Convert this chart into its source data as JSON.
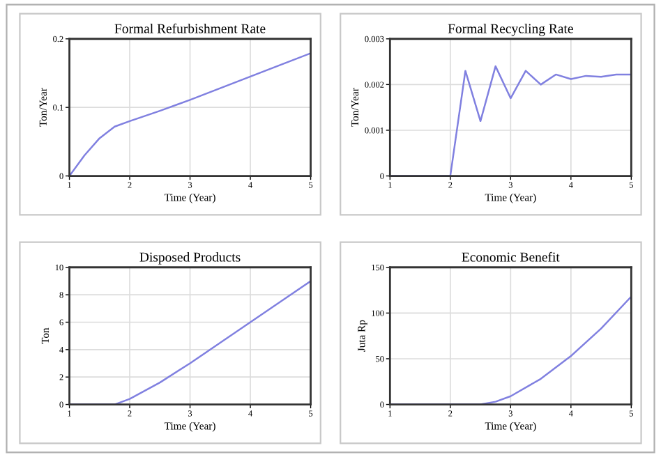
{
  "chart_data": [
    {
      "type": "line",
      "title": "Formal Refurbishment Rate",
      "xlabel": "Time (Year)",
      "ylabel": "Ton/Year",
      "xlim": [
        1,
        5
      ],
      "xticks": [
        1,
        2,
        3,
        4,
        5
      ],
      "ylim": [
        0,
        0.2
      ],
      "yticks": [
        0,
        0.1,
        0.2
      ],
      "grid": true,
      "series": [
        {
          "color": "#8080e0",
          "x": [
            1,
            1.25,
            1.5,
            1.75,
            2,
            2.5,
            3,
            3.5,
            4,
            4.5,
            5
          ],
          "values": [
            0,
            0.03,
            0.055,
            0.072,
            0.08,
            0.095,
            0.111,
            0.128,
            0.145,
            0.162,
            0.179
          ]
        }
      ]
    },
    {
      "type": "line",
      "title": "Formal Recycling Rate",
      "xlabel": "Time (Year)",
      "ylabel": "Ton/Year",
      "xlim": [
        1,
        5
      ],
      "xticks": [
        1,
        2,
        3,
        4,
        5
      ],
      "ylim": [
        0,
        0.003
      ],
      "yticks": [
        0,
        0.001,
        0.002,
        0.003
      ],
      "grid": true,
      "series": [
        {
          "color": "#8080e0",
          "x": [
            1,
            2,
            2.25,
            2.5,
            2.75,
            3,
            3.25,
            3.5,
            3.75,
            4,
            4.25,
            4.5,
            4.75,
            5
          ],
          "values": [
            0,
            0,
            0.0023,
            0.0012,
            0.0024,
            0.0017,
            0.0023,
            0.002,
            0.00222,
            0.00212,
            0.00219,
            0.00217,
            0.00222,
            0.00222
          ]
        }
      ]
    },
    {
      "type": "line",
      "title": "Disposed Products",
      "xlabel": "Time (Year)",
      "ylabel": "Ton",
      "xlim": [
        1,
        5
      ],
      "xticks": [
        1,
        2,
        3,
        4,
        5
      ],
      "ylim": [
        0,
        10
      ],
      "yticks": [
        0,
        2,
        4,
        6,
        8,
        10
      ],
      "grid": true,
      "series": [
        {
          "color": "#8080e0",
          "x": [
            1,
            1.75,
            2,
            2.5,
            3,
            3.5,
            4,
            4.5,
            5
          ],
          "values": [
            0,
            0,
            0.4,
            1.6,
            3,
            4.5,
            6,
            7.5,
            9
          ]
        }
      ]
    },
    {
      "type": "line",
      "title": "Economic Benefit",
      "xlabel": "Time (Year)",
      "ylabel": "Juta Rp",
      "xlim": [
        1,
        5
      ],
      "xticks": [
        1,
        2,
        3,
        4,
        5
      ],
      "ylim": [
        0,
        150
      ],
      "yticks": [
        0,
        50,
        100,
        150
      ],
      "grid": true,
      "series": [
        {
          "color": "#8080e0",
          "x": [
            1,
            2.5,
            2.75,
            3,
            3.5,
            4,
            4.5,
            5
          ],
          "values": [
            0,
            0,
            3,
            9,
            28,
            53,
            83,
            118
          ]
        }
      ]
    }
  ]
}
